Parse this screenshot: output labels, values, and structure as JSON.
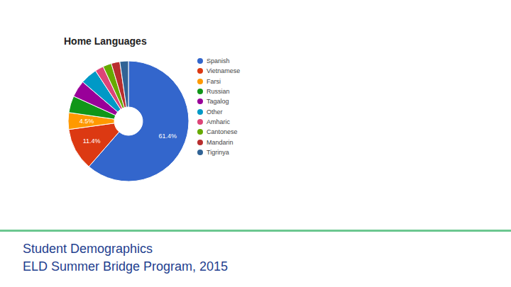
{
  "chart_data": {
    "type": "pie",
    "title": "Home Languages",
    "categories": [
      "Spanish",
      "Vietnamese",
      "Farsi",
      "Russian",
      "Tagalog",
      "Other",
      "Amharic",
      "Cantonese",
      "Mandarin",
      "Tigrinya"
    ],
    "values": [
      61.4,
      11.4,
      4.5,
      4.5,
      4.5,
      4.5,
      2.3,
      2.3,
      2.3,
      2.3
    ],
    "value_labels": [
      "61.4%",
      "11.4%",
      "4.5%",
      null,
      null,
      null,
      null,
      null,
      null,
      null
    ],
    "data_labels": true,
    "colors": [
      "#3366cc",
      "#dc3912",
      "#ff9900",
      "#109618",
      "#990099",
      "#0099c6",
      "#dd4477",
      "#66aa00",
      "#b82e2e",
      "#316395"
    ],
    "legend": "right",
    "annotations": [
      "Student Demographics",
      "ELD Summer Bridge Program, 2015"
    ]
  }
}
